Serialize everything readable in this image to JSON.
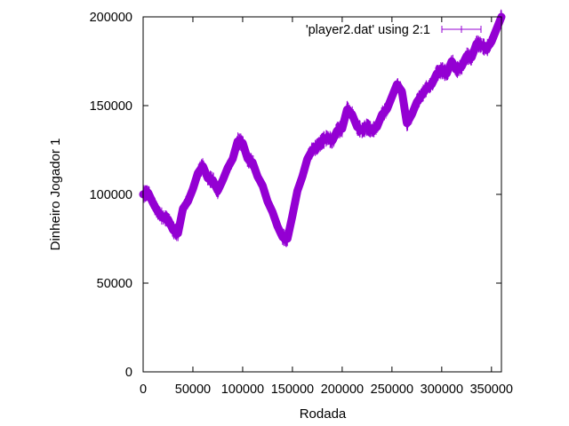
{
  "chart_data": {
    "type": "line",
    "xlabel": "Rodada",
    "ylabel": "Dinheiro Jogador 1",
    "xlim": [
      0,
      360000
    ],
    "ylim": [
      0,
      200000
    ],
    "x_ticks": [
      "0",
      "50000",
      "100000",
      "150000",
      "200000",
      "250000",
      "300000",
      "350000"
    ],
    "y_ticks": [
      "0",
      "50000",
      "100000",
      "150000",
      "200000"
    ],
    "grid": false,
    "legend_position": "top-right",
    "series": [
      {
        "name": "'player2.dat' using 2:1",
        "color": "#9400d3",
        "x": [
          0,
          5000,
          10000,
          15000,
          20000,
          25000,
          30000,
          35000,
          40000,
          45000,
          50000,
          55000,
          60000,
          65000,
          70000,
          75000,
          80000,
          85000,
          90000,
          95000,
          100000,
          105000,
          110000,
          115000,
          120000,
          125000,
          130000,
          135000,
          140000,
          145000,
          150000,
          155000,
          160000,
          165000,
          170000,
          175000,
          180000,
          185000,
          190000,
          195000,
          200000,
          205000,
          210000,
          215000,
          220000,
          225000,
          230000,
          235000,
          240000,
          245000,
          250000,
          255000,
          260000,
          265000,
          270000,
          275000,
          280000,
          285000,
          290000,
          295000,
          300000,
          305000,
          310000,
          315000,
          320000,
          325000,
          330000,
          335000,
          340000,
          345000,
          350000,
          355000,
          360000
        ],
        "y": [
          100000,
          101000,
          95000,
          90000,
          87000,
          86000,
          80000,
          78000,
          92000,
          96000,
          103000,
          112000,
          116000,
          109000,
          108000,
          102000,
          108000,
          115000,
          120000,
          130000,
          129000,
          120000,
          118000,
          110000,
          105000,
          96000,
          90000,
          82000,
          76000,
          75000,
          88000,
          102000,
          110000,
          120000,
          125000,
          127000,
          130000,
          132000,
          130000,
          136000,
          137000,
          148000,
          145000,
          138000,
          136000,
          138000,
          136000,
          138000,
          145000,
          148000,
          155000,
          162000,
          158000,
          140000,
          145000,
          152000,
          156000,
          160000,
          162000,
          168000,
          170000,
          168000,
          175000,
          170000,
          172000,
          178000,
          177000,
          185000,
          184000,
          182000,
          186000,
          193000,
          200000
        ]
      }
    ]
  }
}
